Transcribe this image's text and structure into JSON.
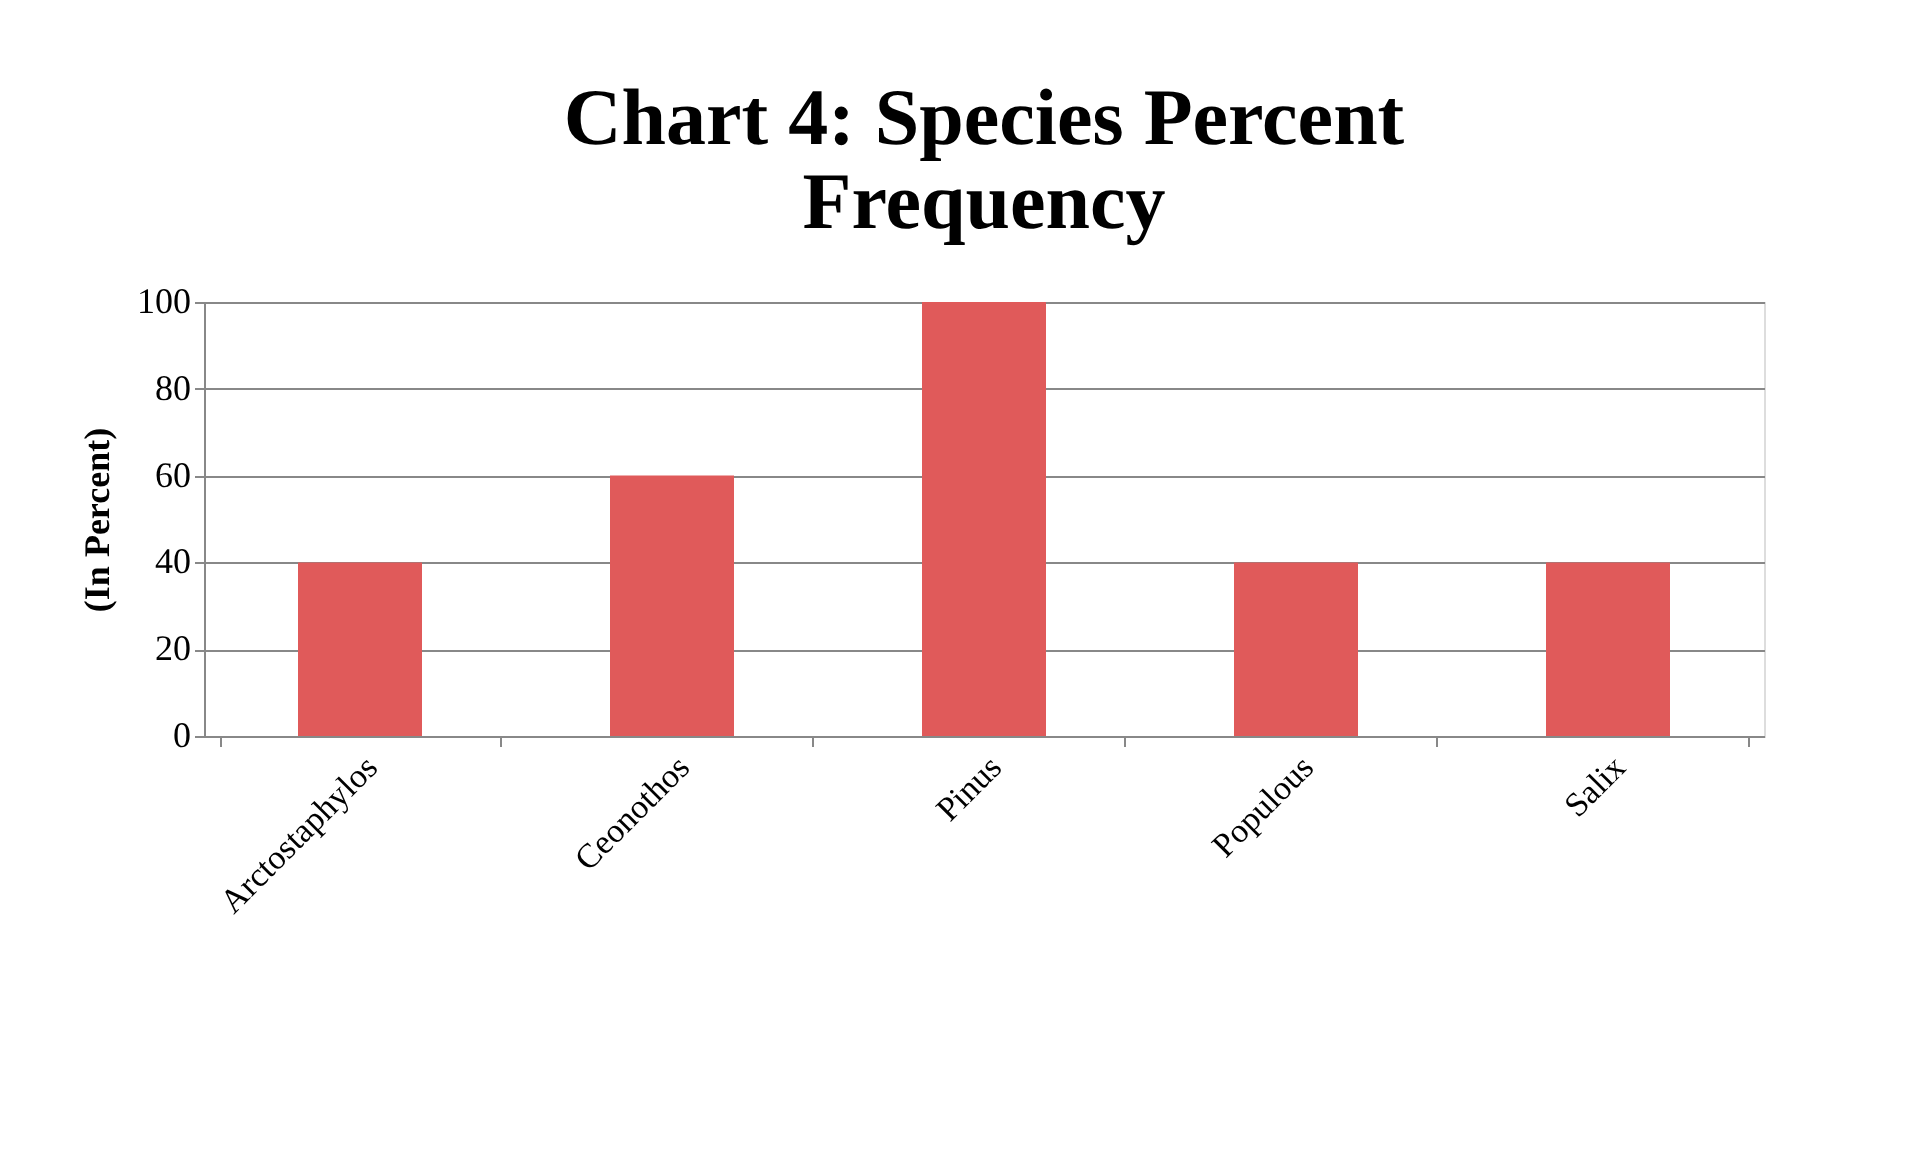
{
  "chart_data": {
    "type": "bar",
    "title": "Chart 4: Species Percent Frequency",
    "ylabel": "(In Percent)",
    "categories": [
      "Arctostaphylos",
      "Ceonothos",
      "Pinus",
      "Populous",
      "Salix"
    ],
    "values": [
      40,
      60,
      100,
      40,
      40
    ],
    "color": "#e05a5a",
    "ylim": [
      0,
      100
    ],
    "yticks": [
      0,
      20,
      40,
      60,
      80,
      100
    ],
    "grid": "y"
  }
}
